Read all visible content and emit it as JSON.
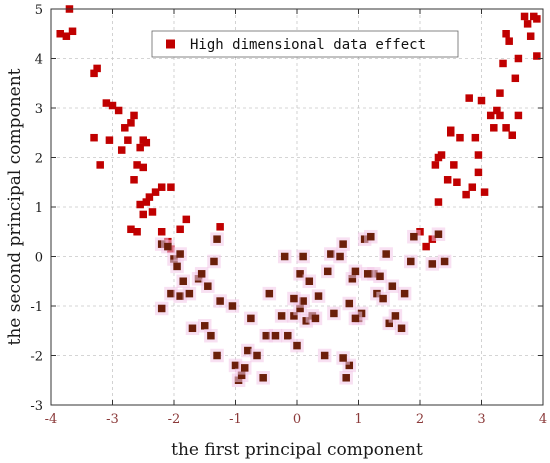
{
  "chart_data": {
    "type": "scatter",
    "xlabel": "the first principal component",
    "ylabel": "the second principal component",
    "xlim": [
      -4,
      4
    ],
    "ylim": [
      -3,
      5
    ],
    "xticks": [
      "-4",
      "-3",
      "-2",
      "-1",
      "0",
      "1",
      "2",
      "3",
      "4"
    ],
    "yticks": [
      "-3",
      "-2",
      "-1",
      "0",
      "1",
      "2",
      "3",
      "4",
      "5"
    ],
    "grid": true,
    "legend_position": "top-right",
    "series": [
      {
        "name": "High dimensional data effect",
        "color": "#c00000",
        "marker": "square",
        "points": [
          [
            -3.85,
            4.5
          ],
          [
            -3.75,
            4.45
          ],
          [
            -3.65,
            4.55
          ],
          [
            -3.7,
            5.0
          ],
          [
            -3.3,
            3.7
          ],
          [
            -3.25,
            3.8
          ],
          [
            -3.3,
            2.4
          ],
          [
            -3.2,
            1.85
          ],
          [
            -3.1,
            3.1
          ],
          [
            -3.0,
            3.05
          ],
          [
            -3.05,
            2.35
          ],
          [
            -2.9,
            2.95
          ],
          [
            -2.8,
            2.6
          ],
          [
            -2.7,
            2.7
          ],
          [
            -2.85,
            2.15
          ],
          [
            -2.75,
            2.35
          ],
          [
            -2.65,
            2.85
          ],
          [
            -2.55,
            2.2
          ],
          [
            -2.5,
            2.35
          ],
          [
            -2.45,
            2.3
          ],
          [
            -2.6,
            1.85
          ],
          [
            -2.5,
            1.8
          ],
          [
            -2.65,
            1.55
          ],
          [
            -2.55,
            1.05
          ],
          [
            -2.45,
            1.1
          ],
          [
            -2.4,
            1.2
          ],
          [
            -2.3,
            1.3
          ],
          [
            -2.2,
            1.4
          ],
          [
            -2.5,
            0.85
          ],
          [
            -2.35,
            0.9
          ],
          [
            -2.05,
            1.4
          ],
          [
            -2.2,
            0.5
          ],
          [
            -2.7,
            0.55
          ],
          [
            -2.6,
            0.5
          ],
          [
            -2.2,
            0.25
          ],
          [
            -2.1,
            0.3
          ],
          [
            -1.9,
            0.55
          ],
          [
            -2.05,
            0.15
          ],
          [
            -1.8,
            0.75
          ],
          [
            -1.25,
            0.6
          ],
          [
            2.3,
            1.1
          ],
          [
            2.25,
            1.85
          ],
          [
            2.3,
            2.0
          ],
          [
            2.35,
            2.05
          ],
          [
            2.5,
            2.5
          ],
          [
            2.45,
            1.55
          ],
          [
            2.55,
            1.85
          ],
          [
            2.6,
            1.5
          ],
          [
            2.65,
            2.4
          ],
          [
            2.75,
            1.25
          ],
          [
            2.85,
            1.4
          ],
          [
            2.9,
            2.4
          ],
          [
            2.95,
            2.05
          ],
          [
            2.8,
            3.2
          ],
          [
            3.0,
            3.15
          ],
          [
            3.05,
            1.3
          ],
          [
            2.95,
            1.7
          ],
          [
            3.15,
            2.85
          ],
          [
            3.2,
            2.6
          ],
          [
            3.25,
            2.95
          ],
          [
            3.3,
            3.3
          ],
          [
            3.35,
            3.9
          ],
          [
            3.4,
            4.5
          ],
          [
            3.45,
            4.35
          ],
          [
            3.5,
            2.45
          ],
          [
            3.4,
            2.6
          ],
          [
            3.55,
            3.6
          ],
          [
            3.6,
            4.0
          ],
          [
            3.7,
            4.85
          ],
          [
            3.75,
            4.7
          ],
          [
            3.8,
            4.45
          ],
          [
            3.85,
            4.85
          ],
          [
            3.9,
            4.8
          ],
          [
            3.9,
            4.05
          ],
          [
            3.6,
            2.85
          ],
          [
            2.2,
            0.35
          ],
          [
            2.1,
            0.2
          ],
          [
            2.0,
            0.5
          ],
          [
            3.3,
            2.85
          ],
          [
            2.5,
            2.55
          ]
        ]
      },
      {
        "name": "",
        "color": "#6b1f0a",
        "marker": "square",
        "points": [
          [
            -2.2,
            0.25
          ],
          [
            -2.1,
            0.2
          ],
          [
            -2.0,
            -0.05
          ],
          [
            -1.9,
            0.05
          ],
          [
            -1.95,
            -0.2
          ],
          [
            -1.85,
            -0.5
          ],
          [
            -2.05,
            -0.75
          ],
          [
            -1.9,
            -0.8
          ],
          [
            -2.2,
            -1.05
          ],
          [
            -1.75,
            -0.75
          ],
          [
            -1.6,
            -0.45
          ],
          [
            -1.55,
            -0.35
          ],
          [
            -1.45,
            -0.6
          ],
          [
            -1.35,
            -0.1
          ],
          [
            -1.3,
            0.35
          ],
          [
            -1.25,
            -0.9
          ],
          [
            -1.7,
            -1.45
          ],
          [
            -1.5,
            -1.4
          ],
          [
            -1.4,
            -1.6
          ],
          [
            -1.3,
            -2.0
          ],
          [
            -1.05,
            -1.0
          ],
          [
            -1.0,
            -2.2
          ],
          [
            -0.95,
            -2.5
          ],
          [
            -0.9,
            -2.4
          ],
          [
            -0.85,
            -2.25
          ],
          [
            -0.8,
            -1.9
          ],
          [
            -0.75,
            -1.25
          ],
          [
            -0.65,
            -2.0
          ],
          [
            -0.55,
            -2.45
          ],
          [
            -0.5,
            -1.6
          ],
          [
            -0.45,
            -0.75
          ],
          [
            -0.35,
            -1.6
          ],
          [
            -0.25,
            -1.2
          ],
          [
            -0.15,
            -1.6
          ],
          [
            -0.05,
            -1.2
          ],
          [
            0.0,
            -1.8
          ],
          [
            0.05,
            -1.05
          ],
          [
            0.1,
            -0.9
          ],
          [
            -0.2,
            0.0
          ],
          [
            0.05,
            -0.35
          ],
          [
            0.1,
            0.0
          ],
          [
            0.15,
            -1.3
          ],
          [
            0.2,
            -0.5
          ],
          [
            0.25,
            -1.2
          ],
          [
            0.35,
            -0.8
          ],
          [
            0.45,
            -2.0
          ],
          [
            0.55,
            0.05
          ],
          [
            0.7,
            0.0
          ],
          [
            0.75,
            0.25
          ],
          [
            0.9,
            -0.45
          ],
          [
            0.85,
            -0.95
          ],
          [
            0.95,
            -0.3
          ],
          [
            1.0,
            -1.25
          ],
          [
            1.05,
            -1.15
          ],
          [
            1.1,
            0.35
          ],
          [
            1.2,
            0.4
          ],
          [
            1.25,
            -0.35
          ],
          [
            1.3,
            -0.75
          ],
          [
            1.4,
            -0.85
          ],
          [
            1.45,
            0.05
          ],
          [
            1.5,
            -1.35
          ],
          [
            1.55,
            -0.6
          ],
          [
            1.6,
            -1.2
          ],
          [
            1.7,
            -1.45
          ],
          [
            1.75,
            -0.75
          ],
          [
            1.85,
            -0.1
          ],
          [
            1.9,
            0.4
          ],
          [
            2.2,
            -0.15
          ],
          [
            2.3,
            0.45
          ],
          [
            2.4,
            -0.1
          ],
          [
            0.85,
            -2.2
          ],
          [
            0.8,
            -2.45
          ],
          [
            0.75,
            -2.05
          ],
          [
            0.95,
            -1.25
          ],
          [
            1.15,
            -0.35
          ],
          [
            1.35,
            -0.4
          ],
          [
            0.5,
            -0.3
          ],
          [
            -0.05,
            -0.85
          ],
          [
            0.3,
            -1.25
          ],
          [
            0.6,
            -1.15
          ]
        ]
      }
    ]
  }
}
